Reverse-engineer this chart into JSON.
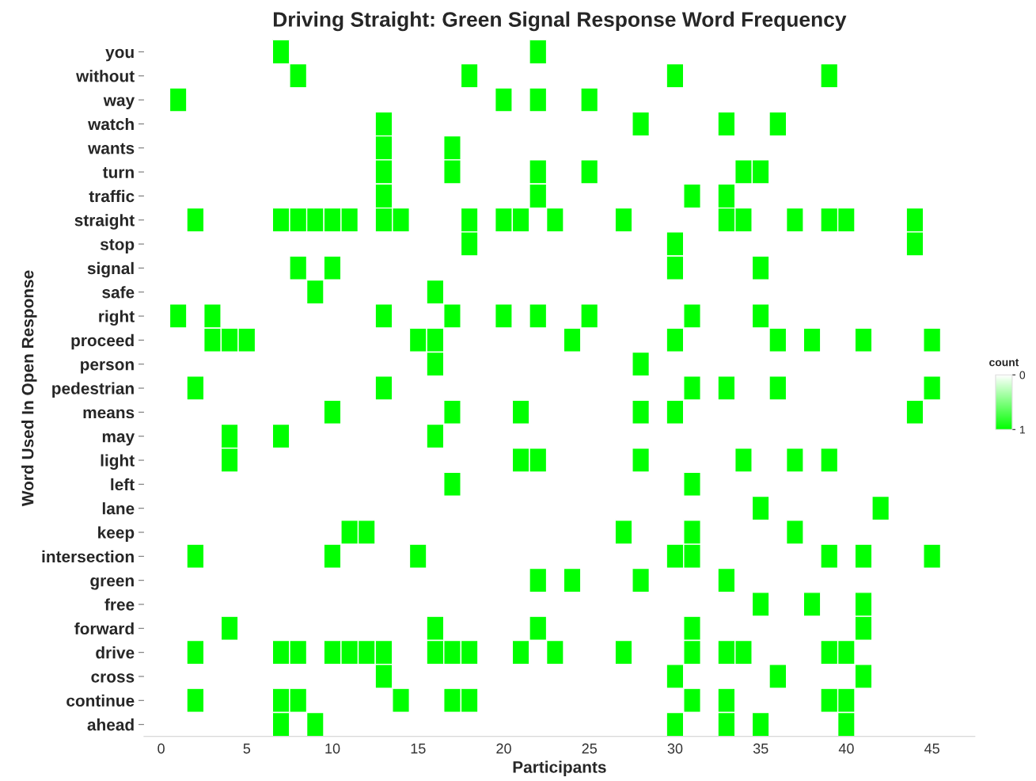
{
  "chart_data": {
    "type": "heatmap",
    "title": "Driving Straight: Green Signal Response Word Frequency",
    "xlabel": "Participants",
    "ylabel": "Word Used In Open Response",
    "clabel": "count",
    "clim": [
      0,
      1
    ],
    "cticks": [
      0,
      1
    ],
    "colors": [
      "#ffffff",
      "#00ff00"
    ],
    "x": [
      1,
      2,
      3,
      4,
      5,
      6,
      7,
      8,
      9,
      10,
      11,
      12,
      13,
      14,
      15,
      16,
      17,
      18,
      19,
      20,
      21,
      22,
      23,
      24,
      25,
      26,
      27,
      28,
      29,
      30,
      31,
      32,
      33,
      34,
      35,
      36,
      37,
      38,
      39,
      40,
      41,
      42,
      43,
      44,
      45
    ],
    "xlim": [
      -1,
      47.5
    ],
    "xticks": [
      0,
      5,
      10,
      15,
      20,
      25,
      30,
      35,
      40,
      45
    ],
    "y_categories": [
      "you",
      "without",
      "way",
      "watch",
      "wants",
      "turn",
      "traffic",
      "straight",
      "stop",
      "signal",
      "safe",
      "right",
      "proceed",
      "person",
      "pedestrian",
      "means",
      "may",
      "light",
      "left",
      "lane",
      "keep",
      "intersection",
      "green",
      "free",
      "forward",
      "drive",
      "cross",
      "continue",
      "ahead"
    ],
    "cells": [
      [
        0,
        0,
        0,
        0,
        0,
        0,
        1,
        0,
        0,
        0,
        0,
        0,
        0,
        0,
        0,
        0,
        0,
        0,
        0,
        0,
        0,
        1,
        0,
        0,
        0,
        0,
        0,
        0,
        0,
        0,
        0,
        0,
        0,
        0,
        0,
        0,
        0,
        0,
        0,
        0,
        0,
        0,
        0,
        0,
        0
      ],
      [
        0,
        0,
        0,
        0,
        0,
        0,
        0,
        1,
        0,
        0,
        0,
        0,
        0,
        0,
        0,
        0,
        0,
        1,
        0,
        0,
        0,
        0,
        0,
        0,
        0,
        0,
        0,
        0,
        0,
        1,
        0,
        0,
        0,
        0,
        0,
        0,
        0,
        0,
        1,
        0,
        0,
        0,
        0,
        0,
        0
      ],
      [
        1,
        0,
        0,
        0,
        0,
        0,
        0,
        0,
        0,
        0,
        0,
        0,
        0,
        0,
        0,
        0,
        0,
        0,
        0,
        1,
        0,
        1,
        0,
        0,
        1,
        0,
        0,
        0,
        0,
        0,
        0,
        0,
        0,
        0,
        0,
        0,
        0,
        0,
        0,
        0,
        0,
        0,
        0,
        0,
        0
      ],
      [
        0,
        0,
        0,
        0,
        0,
        0,
        0,
        0,
        0,
        0,
        0,
        0,
        1,
        0,
        0,
        0,
        0,
        0,
        0,
        0,
        0,
        0,
        0,
        0,
        0,
        0,
        0,
        1,
        0,
        0,
        0,
        0,
        1,
        0,
        0,
        1,
        0,
        0,
        0,
        0,
        0,
        0,
        0,
        0,
        0
      ],
      [
        0,
        0,
        0,
        0,
        0,
        0,
        0,
        0,
        0,
        0,
        0,
        0,
        1,
        0,
        0,
        0,
        1,
        0,
        0,
        0,
        0,
        0,
        0,
        0,
        0,
        0,
        0,
        0,
        0,
        0,
        0,
        0,
        0,
        0,
        0,
        0,
        0,
        0,
        0,
        0,
        0,
        0,
        0,
        0,
        0
      ],
      [
        0,
        0,
        0,
        0,
        0,
        0,
        0,
        0,
        0,
        0,
        0,
        0,
        1,
        0,
        0,
        0,
        1,
        0,
        0,
        0,
        0,
        1,
        0,
        0,
        1,
        0,
        0,
        0,
        0,
        0,
        0,
        0,
        0,
        1,
        1,
        0,
        0,
        0,
        0,
        0,
        0,
        0,
        0,
        0,
        0
      ],
      [
        0,
        0,
        0,
        0,
        0,
        0,
        0,
        0,
        0,
        0,
        0,
        0,
        1,
        0,
        0,
        0,
        0,
        0,
        0,
        0,
        0,
        1,
        0,
        0,
        0,
        0,
        0,
        0,
        0,
        0,
        1,
        0,
        1,
        0,
        0,
        0,
        0,
        0,
        0,
        0,
        0,
        0,
        0,
        0,
        0
      ],
      [
        0,
        1,
        0,
        0,
        0,
        0,
        1,
        1,
        1,
        1,
        1,
        0,
        1,
        1,
        0,
        0,
        0,
        1,
        0,
        1,
        1,
        0,
        1,
        0,
        0,
        0,
        1,
        0,
        0,
        0,
        0,
        0,
        1,
        1,
        0,
        0,
        1,
        0,
        1,
        1,
        0,
        0,
        0,
        1,
        0
      ],
      [
        0,
        0,
        0,
        0,
        0,
        0,
        0,
        0,
        0,
        0,
        0,
        0,
        0,
        0,
        0,
        0,
        0,
        1,
        0,
        0,
        0,
        0,
        0,
        0,
        0,
        0,
        0,
        0,
        0,
        1,
        0,
        0,
        0,
        0,
        0,
        0,
        0,
        0,
        0,
        0,
        0,
        0,
        0,
        1,
        0
      ],
      [
        0,
        0,
        0,
        0,
        0,
        0,
        0,
        1,
        0,
        1,
        0,
        0,
        0,
        0,
        0,
        0,
        0,
        0,
        0,
        0,
        0,
        0,
        0,
        0,
        0,
        0,
        0,
        0,
        0,
        1,
        0,
        0,
        0,
        0,
        1,
        0,
        0,
        0,
        0,
        0,
        0,
        0,
        0,
        0,
        0
      ],
      [
        0,
        0,
        0,
        0,
        0,
        0,
        0,
        0,
        1,
        0,
        0,
        0,
        0,
        0,
        0,
        1,
        0,
        0,
        0,
        0,
        0,
        0,
        0,
        0,
        0,
        0,
        0,
        0,
        0,
        0,
        0,
        0,
        0,
        0,
        0,
        0,
        0,
        0,
        0,
        0,
        0,
        0,
        0,
        0,
        0
      ],
      [
        1,
        0,
        1,
        0,
        0,
        0,
        0,
        0,
        0,
        0,
        0,
        0,
        1,
        0,
        0,
        0,
        1,
        0,
        0,
        1,
        0,
        1,
        0,
        0,
        1,
        0,
        0,
        0,
        0,
        0,
        1,
        0,
        0,
        0,
        1,
        0,
        0,
        0,
        0,
        0,
        0,
        0,
        0,
        0,
        0
      ],
      [
        0,
        0,
        1,
        1,
        1,
        0,
        0,
        0,
        0,
        0,
        0,
        0,
        0,
        0,
        1,
        1,
        0,
        0,
        0,
        0,
        0,
        0,
        0,
        1,
        0,
        0,
        0,
        0,
        0,
        1,
        0,
        0,
        0,
        0,
        0,
        1,
        0,
        1,
        0,
        0,
        1,
        0,
        0,
        0,
        1
      ],
      [
        0,
        0,
        0,
        0,
        0,
        0,
        0,
        0,
        0,
        0,
        0,
        0,
        0,
        0,
        0,
        1,
        0,
        0,
        0,
        0,
        0,
        0,
        0,
        0,
        0,
        0,
        0,
        1,
        0,
        0,
        0,
        0,
        0,
        0,
        0,
        0,
        0,
        0,
        0,
        0,
        0,
        0,
        0,
        0,
        0
      ],
      [
        0,
        1,
        0,
        0,
        0,
        0,
        0,
        0,
        0,
        0,
        0,
        0,
        1,
        0,
        0,
        0,
        0,
        0,
        0,
        0,
        0,
        0,
        0,
        0,
        0,
        0,
        0,
        0,
        0,
        0,
        1,
        0,
        1,
        0,
        0,
        1,
        0,
        0,
        0,
        0,
        0,
        0,
        0,
        0,
        1
      ],
      [
        0,
        0,
        0,
        0,
        0,
        0,
        0,
        0,
        0,
        1,
        0,
        0,
        0,
        0,
        0,
        0,
        1,
        0,
        0,
        0,
        1,
        0,
        0,
        0,
        0,
        0,
        0,
        1,
        0,
        1,
        0,
        0,
        0,
        0,
        0,
        0,
        0,
        0,
        0,
        0,
        0,
        0,
        0,
        1,
        0
      ],
      [
        0,
        0,
        0,
        1,
        0,
        0,
        1,
        0,
        0,
        0,
        0,
        0,
        0,
        0,
        0,
        1,
        0,
        0,
        0,
        0,
        0,
        0,
        0,
        0,
        0,
        0,
        0,
        0,
        0,
        0,
        0,
        0,
        0,
        0,
        0,
        0,
        0,
        0,
        0,
        0,
        0,
        0,
        0,
        0,
        0
      ],
      [
        0,
        0,
        0,
        1,
        0,
        0,
        0,
        0,
        0,
        0,
        0,
        0,
        0,
        0,
        0,
        0,
        0,
        0,
        0,
        0,
        1,
        1,
        0,
        0,
        0,
        0,
        0,
        1,
        0,
        0,
        0,
        0,
        0,
        1,
        0,
        0,
        1,
        0,
        1,
        0,
        0,
        0,
        0,
        0,
        0
      ],
      [
        0,
        0,
        0,
        0,
        0,
        0,
        0,
        0,
        0,
        0,
        0,
        0,
        0,
        0,
        0,
        0,
        1,
        0,
        0,
        0,
        0,
        0,
        0,
        0,
        0,
        0,
        0,
        0,
        0,
        0,
        1,
        0,
        0,
        0,
        0,
        0,
        0,
        0,
        0,
        0,
        0,
        0,
        0,
        0,
        0
      ],
      [
        0,
        0,
        0,
        0,
        0,
        0,
        0,
        0,
        0,
        0,
        0,
        0,
        0,
        0,
        0,
        0,
        0,
        0,
        0,
        0,
        0,
        0,
        0,
        0,
        0,
        0,
        0,
        0,
        0,
        0,
        0,
        0,
        0,
        0,
        1,
        0,
        0,
        0,
        0,
        0,
        0,
        1,
        0,
        0,
        0
      ],
      [
        0,
        0,
        0,
        0,
        0,
        0,
        0,
        0,
        0,
        0,
        1,
        1,
        0,
        0,
        0,
        0,
        0,
        0,
        0,
        0,
        0,
        0,
        0,
        0,
        0,
        0,
        1,
        0,
        0,
        0,
        1,
        0,
        0,
        0,
        0,
        0,
        1,
        0,
        0,
        0,
        0,
        0,
        0,
        0,
        0
      ],
      [
        0,
        1,
        0,
        0,
        0,
        0,
        0,
        0,
        0,
        1,
        0,
        0,
        0,
        0,
        1,
        0,
        0,
        0,
        0,
        0,
        0,
        0,
        0,
        0,
        0,
        0,
        0,
        0,
        0,
        1,
        1,
        0,
        0,
        0,
        0,
        0,
        0,
        0,
        1,
        0,
        1,
        0,
        0,
        0,
        1
      ],
      [
        0,
        0,
        0,
        0,
        0,
        0,
        0,
        0,
        0,
        0,
        0,
        0,
        0,
        0,
        0,
        0,
        0,
        0,
        0,
        0,
        0,
        1,
        0,
        1,
        0,
        0,
        0,
        1,
        0,
        0,
        0,
        0,
        1,
        0,
        0,
        0,
        0,
        0,
        0,
        0,
        0,
        0,
        0,
        0,
        0
      ],
      [
        0,
        0,
        0,
        0,
        0,
        0,
        0,
        0,
        0,
        0,
        0,
        0,
        0,
        0,
        0,
        0,
        0,
        0,
        0,
        0,
        0,
        0,
        0,
        0,
        0,
        0,
        0,
        0,
        0,
        0,
        0,
        0,
        0,
        0,
        1,
        0,
        0,
        1,
        0,
        0,
        1,
        0,
        0,
        0,
        0
      ],
      [
        0,
        0,
        0,
        1,
        0,
        0,
        0,
        0,
        0,
        0,
        0,
        0,
        0,
        0,
        0,
        1,
        0,
        0,
        0,
        0,
        0,
        1,
        0,
        0,
        0,
        0,
        0,
        0,
        0,
        0,
        1,
        0,
        0,
        0,
        0,
        0,
        0,
        0,
        0,
        0,
        1,
        0,
        0,
        0,
        0
      ],
      [
        0,
        1,
        0,
        0,
        0,
        0,
        1,
        1,
        0,
        1,
        1,
        1,
        1,
        0,
        0,
        1,
        1,
        1,
        0,
        0,
        1,
        0,
        1,
        0,
        0,
        0,
        1,
        0,
        0,
        0,
        1,
        0,
        1,
        1,
        0,
        0,
        0,
        0,
        1,
        1,
        0,
        0,
        0,
        0,
        0
      ],
      [
        0,
        0,
        0,
        0,
        0,
        0,
        0,
        0,
        0,
        0,
        0,
        0,
        1,
        0,
        0,
        0,
        0,
        0,
        0,
        0,
        0,
        0,
        0,
        0,
        0,
        0,
        0,
        0,
        0,
        1,
        0,
        0,
        0,
        0,
        0,
        1,
        0,
        0,
        0,
        0,
        1,
        0,
        0,
        0,
        0
      ],
      [
        0,
        1,
        0,
        0,
        0,
        0,
        1,
        1,
        0,
        0,
        0,
        0,
        0,
        1,
        0,
        0,
        1,
        1,
        0,
        0,
        0,
        0,
        0,
        0,
        0,
        0,
        0,
        0,
        0,
        0,
        1,
        0,
        1,
        0,
        0,
        0,
        0,
        0,
        1,
        1,
        0,
        0,
        0,
        0,
        0
      ],
      [
        0,
        0,
        0,
        0,
        0,
        0,
        1,
        0,
        1,
        0,
        0,
        0,
        0,
        0,
        0,
        0,
        0,
        0,
        0,
        0,
        0,
        0,
        0,
        0,
        0,
        0,
        0,
        0,
        0,
        1,
        0,
        0,
        1,
        0,
        1,
        0,
        0,
        0,
        0,
        1,
        0,
        0,
        0,
        0,
        0
      ]
    ]
  }
}
